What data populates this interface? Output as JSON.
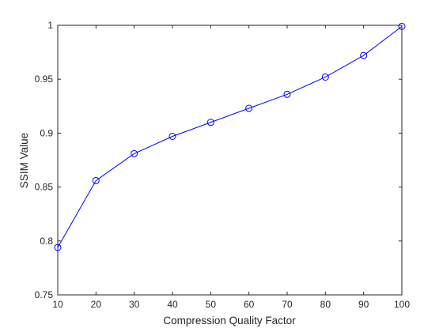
{
  "chart_data": {
    "type": "line",
    "title": "",
    "xlabel": "Compression Quality Factor",
    "ylabel": "SSIM Value",
    "xlim": [
      10,
      100
    ],
    "ylim": [
      0.75,
      1
    ],
    "xticks": [
      10,
      20,
      30,
      40,
      50,
      60,
      70,
      80,
      90,
      100
    ],
    "yticks": [
      0.75,
      0.8,
      0.85,
      0.9,
      0.95,
      1
    ],
    "x_tick_labels": [
      "10",
      "20",
      "30",
      "40",
      "50",
      "60",
      "70",
      "80",
      "90",
      "100"
    ],
    "y_tick_labels": [
      "0.75",
      "0.8",
      "0.85",
      "0.9",
      "0.95",
      "1"
    ],
    "grid": false,
    "legend": "none",
    "series": [
      {
        "color": "#0000ff",
        "marker": "circle",
        "x": [
          10,
          20,
          30,
          40,
          50,
          60,
          70,
          80,
          90,
          100
        ],
        "values": [
          0.794,
          0.856,
          0.881,
          0.897,
          0.91,
          0.923,
          0.936,
          0.952,
          0.972,
          0.999
        ]
      }
    ]
  },
  "colors": {
    "axis": "#262626",
    "series": "#0000ff",
    "background": "#ffffff"
  }
}
